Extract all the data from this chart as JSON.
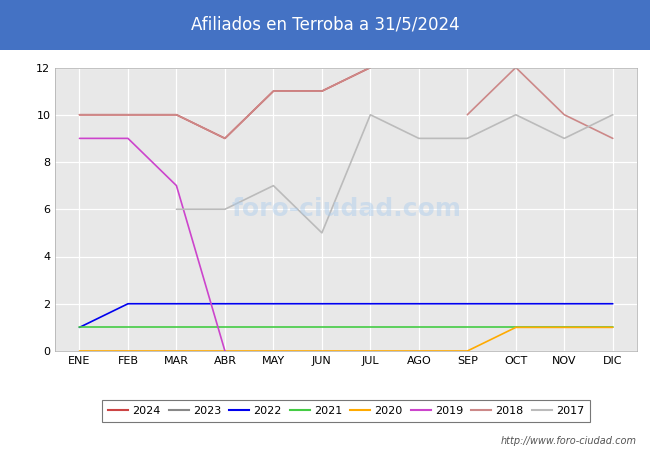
{
  "title": "Afiliados en Terroba a 31/5/2024",
  "title_bg_color": "#4472c4",
  "title_text_color": "white",
  "bg_color": "#e8e8e8",
  "plot_bg_color": "#e8e8e8",
  "ylim": [
    0,
    12
  ],
  "yticks": [
    0,
    2,
    4,
    6,
    8,
    10,
    12
  ],
  "months": [
    "ENE",
    "FEB",
    "MAR",
    "ABR",
    "MAY",
    "JUN",
    "JUL",
    "AGO",
    "SEP",
    "OCT",
    "NOV",
    "DIC"
  ],
  "url": "http://www.foro-ciudad.com",
  "watermark": "foro-ciudad.com",
  "series": {
    "2024": {
      "color": "#cc4444",
      "values": [
        10,
        10,
        10,
        9,
        11,
        11,
        12,
        null,
        null,
        null,
        null,
        null
      ]
    },
    "2023": {
      "color": "#888888",
      "values": [
        null,
        null,
        null,
        null,
        null,
        null,
        null,
        null,
        null,
        null,
        null,
        null
      ]
    },
    "2022": {
      "color": "#0000ee",
      "values": [
        1,
        2,
        2,
        2,
        2,
        2,
        2,
        2,
        2,
        2,
        2,
        2
      ]
    },
    "2021": {
      "color": "#44cc44",
      "values": [
        1,
        1,
        1,
        1,
        1,
        1,
        1,
        1,
        1,
        1,
        1,
        1
      ]
    },
    "2020": {
      "color": "#ffaa00",
      "values": [
        0,
        0,
        0,
        0,
        0,
        0,
        0,
        0,
        0,
        1,
        1,
        1
      ]
    },
    "2019": {
      "color": "#cc44cc",
      "values": [
        9,
        9,
        7,
        0,
        null,
        null,
        null,
        null,
        null,
        null,
        null,
        null
      ]
    },
    "2018": {
      "color": "#cc8888",
      "values": [
        10,
        10,
        10,
        9,
        11,
        11,
        12,
        null,
        10,
        12,
        10,
        9
      ]
    },
    "2017": {
      "color": "#bbbbbb",
      "values": [
        null,
        null,
        6,
        6,
        7,
        5,
        10,
        9,
        9,
        10,
        9,
        10
      ]
    }
  },
  "legend_order": [
    "2024",
    "2023",
    "2022",
    "2021",
    "2020",
    "2019",
    "2018",
    "2017"
  ]
}
